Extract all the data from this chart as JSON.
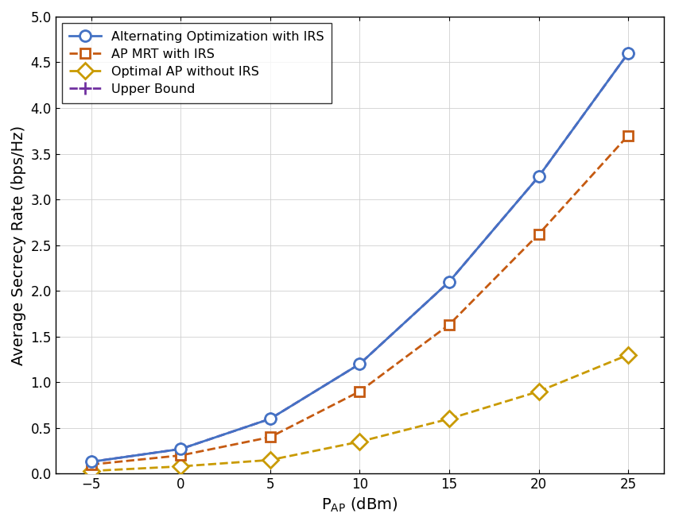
{
  "x": [
    -5,
    0,
    5,
    10,
    15,
    20,
    25
  ],
  "alt_opt_irs": [
    0.13,
    0.27,
    0.6,
    1.2,
    2.1,
    3.25,
    4.6
  ],
  "ap_mrt_irs": [
    0.1,
    0.2,
    0.4,
    0.9,
    1.63,
    2.62,
    3.7
  ],
  "opt_ap_no_irs": [
    0.03,
    0.08,
    0.15,
    0.35,
    0.6,
    0.9,
    1.3
  ],
  "upper_bound": [
    0.13,
    0.27,
    0.6,
    1.2,
    2.1,
    3.25,
    4.6
  ],
  "ylabel": "Average Secrecy Rate (bps/Hz)",
  "xlim": [
    -7,
    27
  ],
  "ylim": [
    0,
    5
  ],
  "xticks": [
    -5,
    0,
    5,
    10,
    15,
    20,
    25
  ],
  "yticks": [
    0,
    0.5,
    1.0,
    1.5,
    2.0,
    2.5,
    3.0,
    3.5,
    4.0,
    4.5,
    5.0
  ],
  "color_alt": "#4472C4",
  "color_mrt": "#C55A11",
  "color_no_irs": "#C99A00",
  "color_upper": "#7030A0",
  "legend_labels": [
    "Alternating Optimization with IRS",
    "AP MRT with IRS",
    "Optimal AP without IRS",
    "Upper Bound"
  ],
  "fig_bg": "#FFFFFF",
  "axis_bg": "#FFFFFF",
  "grid_color": "#D0D0D0"
}
